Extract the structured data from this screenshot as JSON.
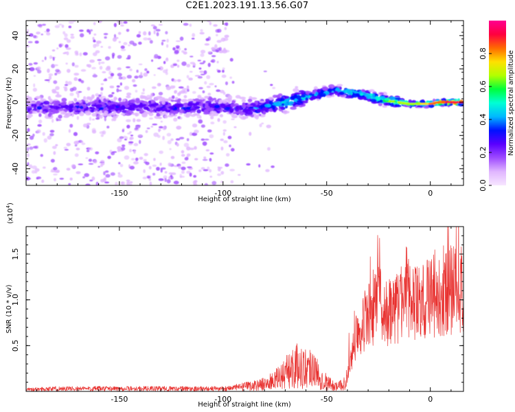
{
  "title": "C2E1.2023.191.13.56.G07",
  "colors": {
    "snr_line": "#e8302e",
    "frame": "#000000",
    "colormap": [
      "#f7e6ff",
      "#e0b6ff",
      "#9f4cff",
      "#5a00ff",
      "#0011ff",
      "#00b8ff",
      "#00ffd5",
      "#00ff3c",
      "#b2ff00",
      "#ffe000",
      "#ff6a00",
      "#ff003f",
      "#ff0090"
    ]
  },
  "chart_data": [
    {
      "type": "heatmap",
      "name": "spectrogram",
      "xlabel": "Height of straight line (km)",
      "ylabel": "Frequency (Hz)",
      "xlim": [
        -195,
        16
      ],
      "ylim": [
        -50,
        49
      ],
      "x_ticks": [
        -150,
        -100,
        -50,
        0
      ],
      "x_tick_labels": [
        "-150",
        "-100",
        "-50",
        "0"
      ],
      "y_ticks": [
        -40,
        -20,
        0,
        20,
        40
      ],
      "y_tick_labels": [
        "-40",
        "-20",
        "0",
        "20",
        "40"
      ],
      "colorbar": {
        "label": "Normalized spectral amplitude",
        "range": [
          0,
          1
        ],
        "ticks": [
          0.0,
          0.2,
          0.4,
          0.6,
          0.8
        ],
        "tick_labels": [
          "0.0",
          "0.2",
          "0.4",
          "0.6",
          "0.8"
        ]
      },
      "ridge": {
        "x": [
          -195,
          -180,
          -160,
          -140,
          -120,
          -100,
          -90,
          -80,
          -70,
          -60,
          -50,
          -45,
          -40,
          -35,
          -30,
          -25,
          -20,
          -15,
          -10,
          -5,
          0,
          5,
          10,
          16
        ],
        "freq": [
          -3,
          -3,
          -3,
          -3,
          -3,
          -3,
          -4,
          -3,
          0,
          3,
          6,
          7,
          6,
          5,
          4,
          2,
          1,
          0,
          -1,
          -1,
          -1,
          0,
          0,
          0
        ],
        "amplitude": [
          0.25,
          0.25,
          0.3,
          0.25,
          0.3,
          0.25,
          0.3,
          0.35,
          0.45,
          0.45,
          0.45,
          0.4,
          0.5,
          0.45,
          0.5,
          0.55,
          0.6,
          0.7,
          0.65,
          0.7,
          0.8,
          0.85,
          0.9,
          0.9
        ]
      },
      "noise_region_x": [
        -195,
        -95
      ]
    },
    {
      "type": "line",
      "name": "snr",
      "xlabel": "Height of straight line (km)",
      "ylabel": "SNR (10 * v/v)",
      "y_multiplier_label": "(x10",
      "y_multiplier_exponent": "4",
      "xlim": [
        -195,
        16
      ],
      "ylim": [
        0,
        1.8
      ],
      "x_ticks": [
        -150,
        -100,
        -50,
        0
      ],
      "x_tick_labels": [
        "-150",
        "-100",
        "-50",
        "0"
      ],
      "y_ticks": [
        0.5,
        1.0,
        1.5
      ],
      "y_tick_labels": [
        "0.5",
        "1.0",
        "1.5"
      ],
      "series": [
        {
          "x": [
            -195,
            -180,
            -160,
            -140,
            -120,
            -100,
            -90,
            -80,
            -75,
            -70,
            -67,
            -65,
            -60,
            -57,
            -55,
            -50,
            -45,
            -42,
            -40,
            -37,
            -35,
            -30,
            -27,
            -25,
            -22,
            -20,
            -15,
            -12,
            -10,
            -5,
            0,
            5,
            10,
            16
          ],
          "y": [
            0.02,
            0.03,
            0.03,
            0.03,
            0.03,
            0.03,
            0.05,
            0.08,
            0.12,
            0.2,
            0.25,
            0.28,
            0.25,
            0.3,
            0.2,
            0.1,
            0.05,
            0.08,
            0.15,
            0.5,
            0.7,
            0.8,
            0.9,
            1.0,
            0.9,
            0.85,
            0.95,
            1.0,
            0.95,
            0.95,
            1.05,
            1.1,
            1.1,
            1.15
          ]
        }
      ]
    }
  ]
}
